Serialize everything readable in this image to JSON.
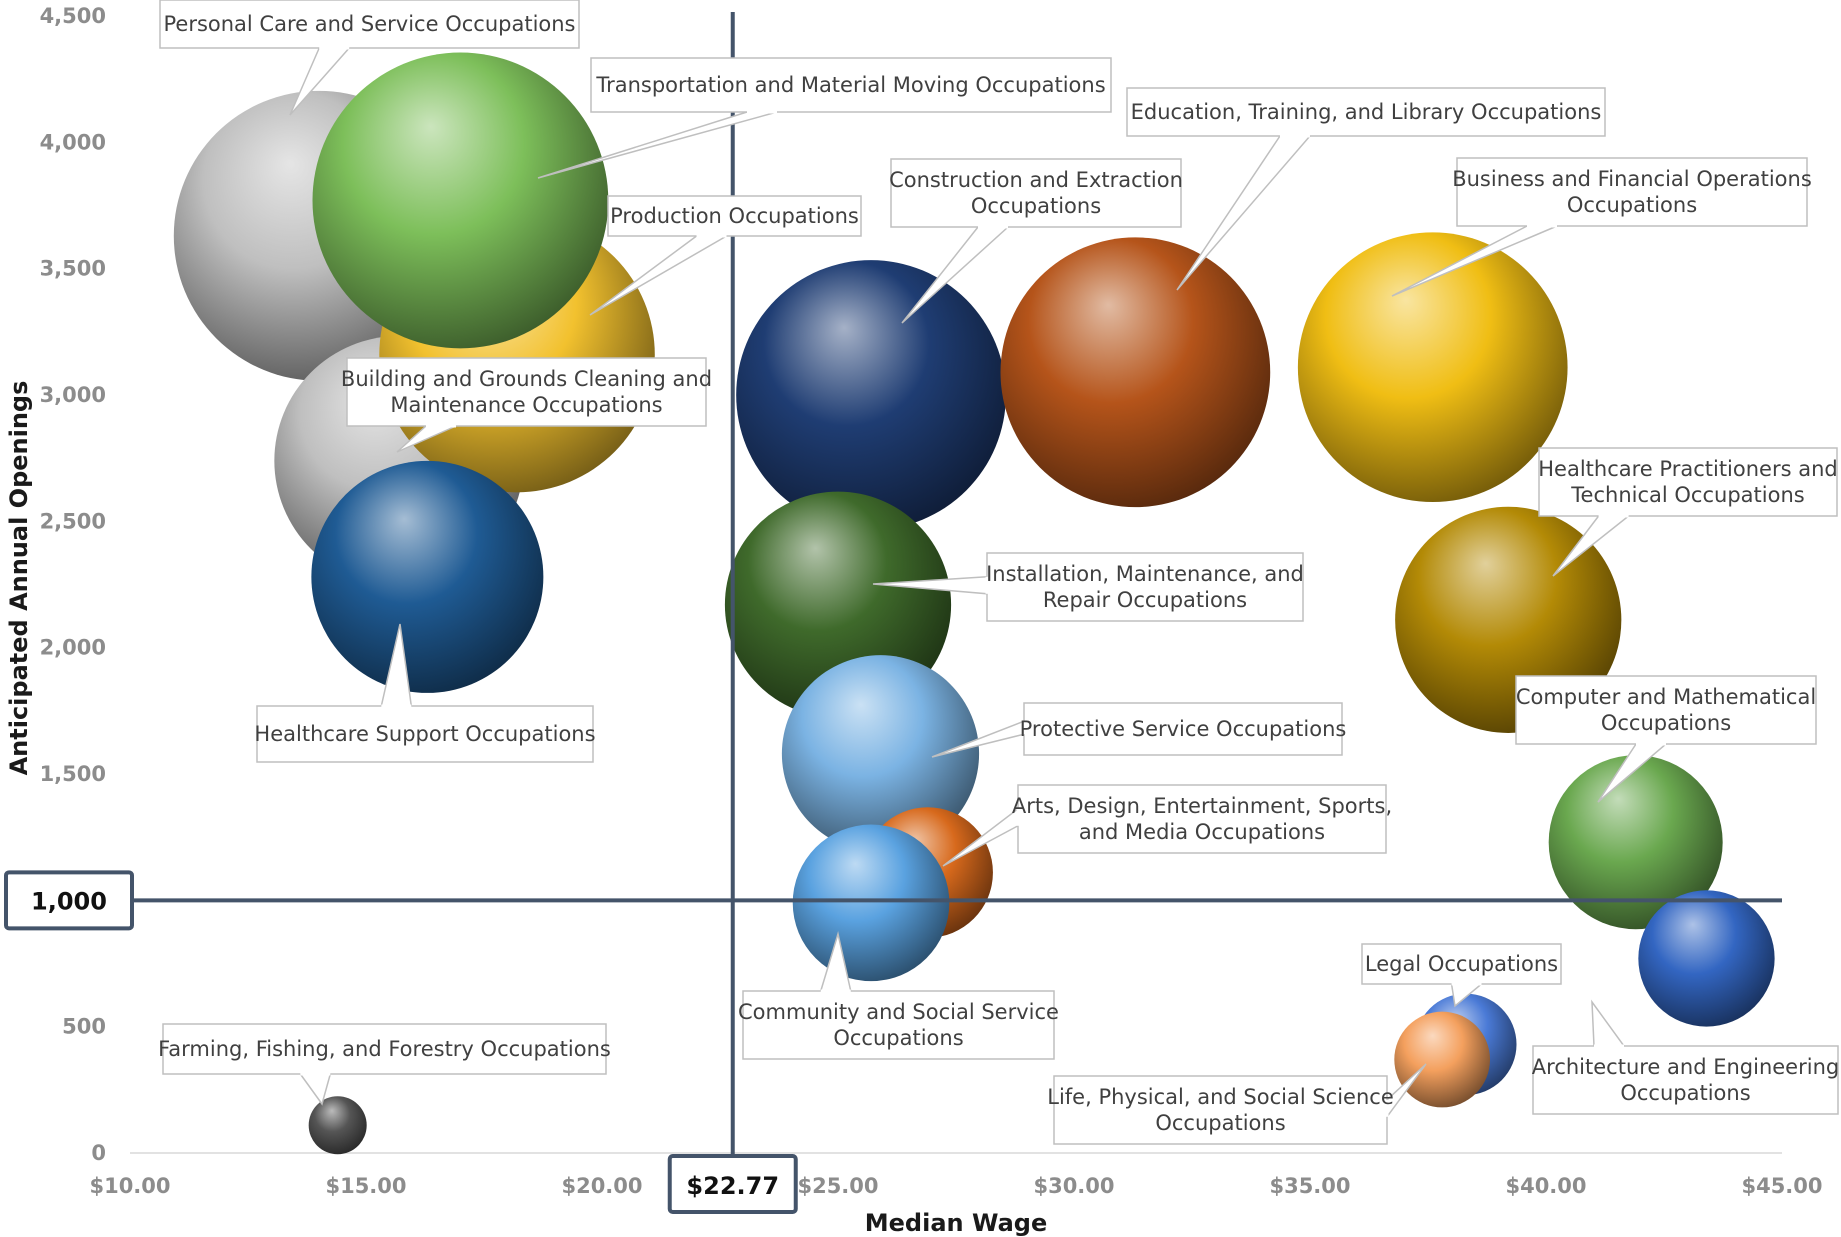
{
  "chart_data": {
    "type": "bubble",
    "xlabel": "Median Wage",
    "ylabel": "Anticipated Annual Openings",
    "xlim": [
      10,
      45
    ],
    "ylim": [
      0,
      4500
    ],
    "x_ticks": [
      10,
      15,
      20,
      25,
      30,
      35,
      40,
      45
    ],
    "x_tick_labels": [
      "$10.00",
      "$15.00",
      "$20.00",
      "$25.00",
      "$30.00",
      "$35.00",
      "$40.00",
      "$45.00"
    ],
    "y_ticks": [
      0,
      500,
      1500,
      2000,
      2500,
      3000,
      3500,
      4000,
      4500
    ],
    "y_tick_labels": [
      "0",
      "500",
      "1,500",
      "2,000",
      "2,500",
      "3,000",
      "3,500",
      "4,000",
      "4,500"
    ],
    "reference_lines": {
      "x": {
        "value": 22.77,
        "label": "$22.77"
      },
      "y": {
        "value": 1000,
        "label": "1,000"
      }
    },
    "grid": false,
    "legend": "none",
    "series": [
      {
        "name": "Personal Care and Service Occupations",
        "x": 14.0,
        "y": 3630,
        "size": 1.0,
        "color": "#bfbfbf"
      },
      {
        "name": "Building and Grounds Cleaning and Maintenance Occupations",
        "x": 15.7,
        "y": 2740,
        "size": 0.86,
        "color": "#bfbfbf"
      },
      {
        "name": "Production Occupations",
        "x": 18.2,
        "y": 3160,
        "size": 0.95,
        "color": "#f2c12e"
      },
      {
        "name": "Transportation and Material Moving Occupations",
        "x": 17.0,
        "y": 3770,
        "size": 1.02,
        "color": "#7dbf5a"
      },
      {
        "name": "Healthcare Support Occupations",
        "x": 16.3,
        "y": 2280,
        "size": 0.8,
        "color": "#1f5b94"
      },
      {
        "name": "Farming, Fishing, and Forestry Occupations",
        "x": 14.4,
        "y": 110,
        "size": 0.2,
        "color": "#555555"
      },
      {
        "name": "Construction and Extraction Occupations",
        "x": 25.7,
        "y": 3000,
        "size": 0.93,
        "color": "#1f3d73"
      },
      {
        "name": "Education, Training, and Library Occupations",
        "x": 31.3,
        "y": 3090,
        "size": 0.93,
        "color": "#b5541a"
      },
      {
        "name": "Business and Financial Operations Occupations",
        "x": 37.6,
        "y": 3110,
        "size": 0.93,
        "color": "#f0be14"
      },
      {
        "name": "Installation, Maintenance, and Repair Occupations",
        "x": 25.0,
        "y": 2170,
        "size": 0.78,
        "color": "#3f6a2b"
      },
      {
        "name": "Protective Service Occupations",
        "x": 25.9,
        "y": 1580,
        "size": 0.68,
        "color": "#7bb3e3"
      },
      {
        "name": "Arts, Design, Entertainment, Sports, and Media Occupations",
        "x": 26.9,
        "y": 1110,
        "size": 0.45,
        "color": "#d7691c"
      },
      {
        "name": "Community and Social Service Occupations",
        "x": 25.7,
        "y": 990,
        "size": 0.54,
        "color": "#5aa2e0"
      },
      {
        "name": "Healthcare Practitioners and Technical Occupations",
        "x": 39.2,
        "y": 2110,
        "size": 0.78,
        "color": "#b38a06"
      },
      {
        "name": "Computer and Mathematical Occupations",
        "x": 41.9,
        "y": 1230,
        "size": 0.6,
        "color": "#6aa84f"
      },
      {
        "name": "Architecture and Engineering Occupations",
        "x": 43.4,
        "y": 770,
        "size": 0.47,
        "color": "#3366c2"
      },
      {
        "name": "Legal Occupations",
        "x": 38.3,
        "y": 430,
        "size": 0.35,
        "color": "#4a7ad6"
      },
      {
        "name": "Life, Physical, and Social Science Occupations",
        "x": 37.8,
        "y": 370,
        "size": 0.33,
        "color": "#f4a05e"
      }
    ]
  },
  "callouts": [
    {
      "lines": [
        "Personal Care and Service Occupations"
      ]
    },
    {
      "lines": [
        "Transportation and Material Moving Occupations"
      ]
    },
    {
      "lines": [
        "Production Occupations"
      ]
    },
    {
      "lines": [
        "Building and Grounds Cleaning and",
        "Maintenance Occupations"
      ]
    },
    {
      "lines": [
        "Healthcare Support Occupations"
      ]
    },
    {
      "lines": [
        "Farming, Fishing, and Forestry Occupations"
      ]
    },
    {
      "lines": [
        "Construction and Extraction",
        "Occupations"
      ]
    },
    {
      "lines": [
        "Education, Training, and Library Occupations"
      ]
    },
    {
      "lines": [
        "Business and Financial Operations",
        "Occupations"
      ]
    },
    {
      "lines": [
        "Installation, Maintenance, and",
        "Repair Occupations"
      ]
    },
    {
      "lines": [
        "Protective Service Occupations"
      ]
    },
    {
      "lines": [
        "Arts, Design, Entertainment, Sports,",
        "and Media Occupations"
      ]
    },
    {
      "lines": [
        "Community and Social Service",
        "Occupations"
      ]
    },
    {
      "lines": [
        "Healthcare Practitioners and",
        "Technical Occupations"
      ]
    },
    {
      "lines": [
        "Computer and Mathematical",
        "Occupations"
      ]
    },
    {
      "lines": [
        "Architecture and Engineering",
        "Occupations"
      ]
    },
    {
      "lines": [
        "Legal Occupations"
      ]
    },
    {
      "lines": [
        "Life, Physical, and Social Science",
        "Occupations"
      ]
    }
  ]
}
